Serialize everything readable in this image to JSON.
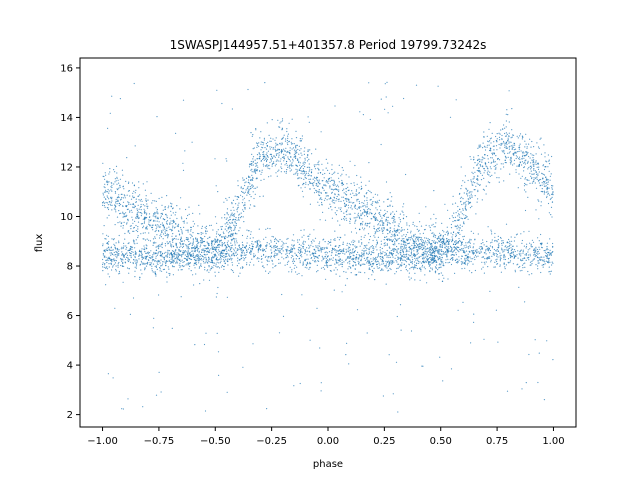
{
  "chart_data": {
    "type": "scatter",
    "title": "1SWASPJ144957.51+401357.8 Period 19799.73242s",
    "xlabel": "phase",
    "ylabel": "flux",
    "xlim": [
      -1.1,
      1.1
    ],
    "ylim": [
      1.5,
      16.4
    ],
    "xticks": [
      -1.0,
      -0.75,
      -0.5,
      -0.25,
      0.0,
      0.25,
      0.5,
      0.75,
      1.0
    ],
    "xtick_labels": [
      "−1.00",
      "−0.75",
      "−0.50",
      "−0.25",
      "0.00",
      "0.25",
      "0.50",
      "0.75",
      "1.00"
    ],
    "yticks": [
      2,
      4,
      6,
      8,
      10,
      12,
      14,
      16
    ],
    "ytick_labels": [
      "2",
      "4",
      "6",
      "8",
      "10",
      "12",
      "14",
      "16"
    ],
    "grid": false,
    "marker_color": "#1f77b4",
    "series": [
      {
        "kind": "baseline-band",
        "x": [
          -1.0,
          -0.75,
          -0.5,
          -0.25,
          0.0,
          0.25,
          0.5,
          0.75,
          1.0
        ],
        "y": [
          8.4,
          8.3,
          8.6,
          8.6,
          8.5,
          8.3,
          8.6,
          8.6,
          8.4
        ],
        "spread": 0.35
      },
      {
        "kind": "variable-branch",
        "x": [
          -1.0,
          -0.9,
          -0.8,
          -0.7,
          -0.6,
          -0.5,
          -0.45,
          -0.4,
          -0.35,
          -0.3,
          -0.25,
          -0.2,
          -0.15,
          -0.1,
          -0.05,
          0.0,
          0.1,
          0.2,
          0.3,
          0.4,
          0.5,
          0.55,
          0.6,
          0.65,
          0.7,
          0.75,
          0.8,
          0.85,
          0.9,
          0.95,
          1.0
        ],
        "y": [
          11.0,
          10.5,
          10.0,
          9.4,
          8.9,
          8.6,
          9.2,
          10.2,
          11.5,
          12.4,
          12.6,
          12.8,
          12.5,
          12.0,
          11.6,
          11.2,
          10.5,
          10.0,
          9.3,
          8.8,
          8.6,
          9.2,
          10.2,
          11.5,
          12.4,
          12.6,
          12.8,
          12.5,
          12.0,
          11.6,
          11.0
        ],
        "spread": 0.55
      }
    ],
    "outlier_range": [
      2.0,
      15.6
    ]
  }
}
